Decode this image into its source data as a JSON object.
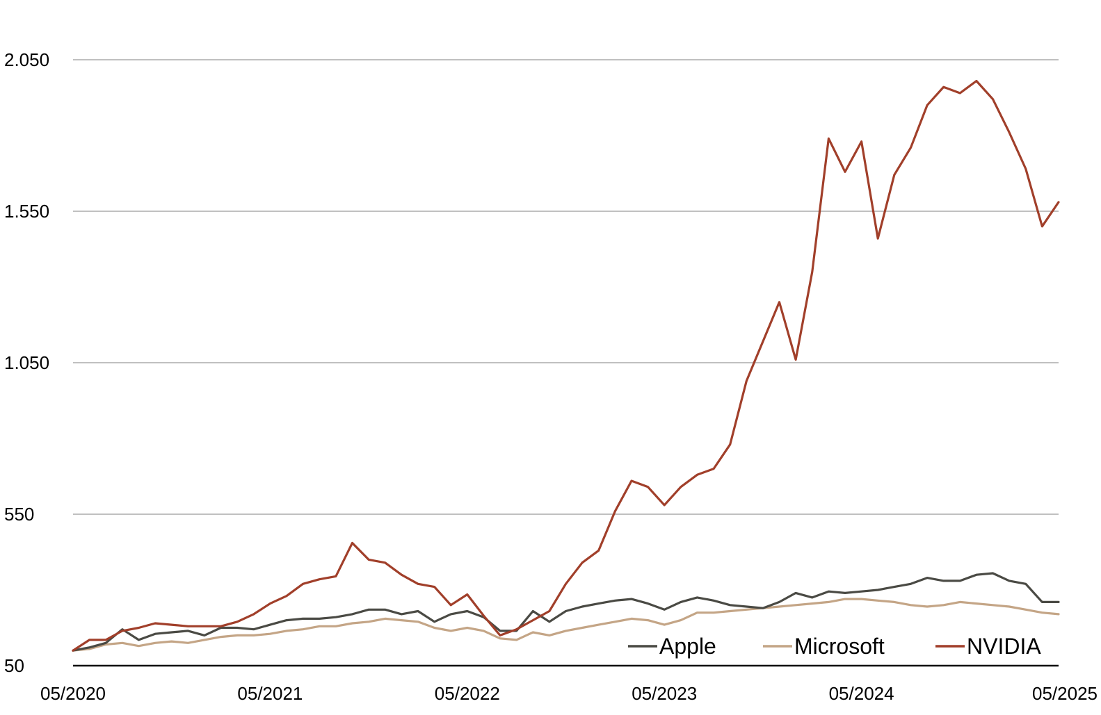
{
  "chart_data": {
    "type": "line",
    "x_ticks": [
      "05/2020",
      "05/2021",
      "05/2022",
      "05/2023",
      "05/2024",
      "05/2025"
    ],
    "y_ticks": [
      {
        "value": 50,
        "label": "50"
      },
      {
        "value": 550,
        "label": "550"
      },
      {
        "value": 1050,
        "label": "1.050"
      },
      {
        "value": 1550,
        "label": "1.550"
      },
      {
        "value": 2050,
        "label": "2.050"
      }
    ],
    "ylim": [
      50,
      2050
    ],
    "xlim": [
      0,
      60
    ],
    "grid": "horizontal",
    "legend_position": "bottom-right",
    "series": [
      {
        "name": "Apple",
        "color": "#4a4a44",
        "x": [
          0,
          1,
          2,
          3,
          4,
          5,
          6,
          7,
          8,
          9,
          10,
          11,
          12,
          13,
          14,
          15,
          16,
          17,
          18,
          19,
          20,
          21,
          22,
          23,
          24,
          25,
          26,
          27,
          28,
          29,
          30,
          31,
          32,
          33,
          34,
          35,
          36,
          37,
          38,
          39,
          40,
          41,
          42,
          43,
          44,
          45,
          46,
          47,
          48,
          49,
          50,
          51,
          52,
          53,
          54,
          55,
          56,
          57,
          58,
          59,
          60
        ],
        "values": [
          100,
          110,
          125,
          170,
          135,
          155,
          160,
          165,
          150,
          175,
          175,
          170,
          185,
          200,
          205,
          205,
          210,
          220,
          235,
          235,
          220,
          230,
          195,
          220,
          230,
          210,
          165,
          165,
          230,
          195,
          230,
          245,
          255,
          265,
          270,
          255,
          235,
          260,
          275,
          265,
          250,
          245,
          240,
          260,
          290,
          275,
          295,
          290,
          295,
          300,
          310,
          320,
          340,
          330,
          330,
          350,
          355,
          330,
          320,
          260,
          260
        ]
      },
      {
        "name": "Microsoft",
        "color": "#c4a586",
        "x": [
          0,
          1,
          2,
          3,
          4,
          5,
          6,
          7,
          8,
          9,
          10,
          11,
          12,
          13,
          14,
          15,
          16,
          17,
          18,
          19,
          20,
          21,
          22,
          23,
          24,
          25,
          26,
          27,
          28,
          29,
          30,
          31,
          32,
          33,
          34,
          35,
          36,
          37,
          38,
          39,
          40,
          41,
          42,
          43,
          44,
          45,
          46,
          47,
          48,
          49,
          50,
          51,
          52,
          53,
          54,
          55,
          56,
          57,
          58,
          59,
          60
        ],
        "values": [
          100,
          105,
          120,
          125,
          115,
          125,
          130,
          125,
          135,
          145,
          150,
          150,
          155,
          165,
          170,
          180,
          180,
          190,
          195,
          205,
          200,
          195,
          175,
          165,
          175,
          165,
          140,
          135,
          160,
          150,
          165,
          175,
          185,
          195,
          205,
          200,
          185,
          200,
          225,
          225,
          230,
          235,
          240,
          245,
          250,
          255,
          260,
          270,
          270,
          265,
          260,
          250,
          245,
          250,
          260,
          255,
          250,
          245,
          235,
          225,
          220
        ]
      },
      {
        "name": "NVIDIA",
        "color": "#a13f2a",
        "x": [
          0,
          1,
          2,
          3,
          4,
          5,
          6,
          7,
          8,
          9,
          10,
          11,
          12,
          13,
          14,
          15,
          16,
          17,
          18,
          19,
          20,
          21,
          22,
          23,
          24,
          25,
          26,
          27,
          28,
          29,
          30,
          31,
          32,
          33,
          34,
          35,
          36,
          37,
          38,
          39,
          40,
          41,
          42,
          43,
          44,
          45,
          46,
          47,
          48,
          49,
          50,
          51,
          52,
          53,
          54,
          55,
          56,
          57,
          58,
          59,
          60
        ],
        "values": [
          100,
          135,
          135,
          165,
          175,
          190,
          185,
          180,
          180,
          180,
          195,
          220,
          255,
          280,
          320,
          335,
          345,
          455,
          400,
          390,
          350,
          320,
          310,
          250,
          285,
          215,
          150,
          170,
          200,
          230,
          320,
          390,
          430,
          560,
          660,
          640,
          580,
          640,
          680,
          700,
          780,
          990,
          1120,
          1250,
          1060,
          1350,
          1790,
          1680,
          1780,
          1460,
          1670,
          1760,
          1900,
          1960,
          1940,
          1980,
          1920,
          1810,
          1690,
          1500,
          1580
        ]
      }
    ]
  }
}
